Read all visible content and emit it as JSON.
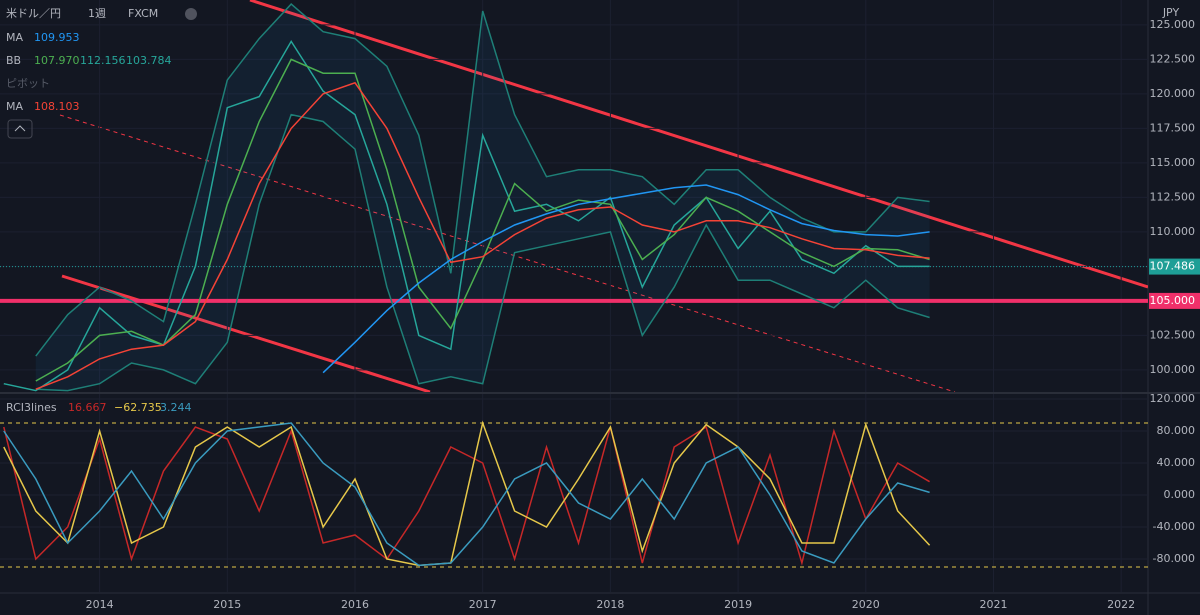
{
  "chart_data": [
    {
      "type": "line",
      "title": [
        "米ドル／円",
        "1週",
        "FXCM"
      ],
      "currency": "JPY",
      "legend": [
        {
          "label": "MA",
          "values": [
            "109.953"
          ],
          "color": "#2196f3"
        },
        {
          "label": "BB",
          "values": [
            "107.970",
            "112.156",
            "103.784"
          ],
          "color": "#4caf50"
        },
        {
          "label": "ピボット",
          "values": [],
          "color": "#555a66"
        },
        {
          "label": "MA",
          "values": [
            "108.103"
          ],
          "color": "#f44336"
        }
      ],
      "x": [
        2013.25,
        2013.5,
        2013.75,
        2014,
        2014.25,
        2014.5,
        2014.75,
        2015,
        2015.25,
        2015.5,
        2015.75,
        2016,
        2016.25,
        2016.5,
        2016.75,
        2017,
        2017.25,
        2017.5,
        2017.75,
        2018,
        2018.25,
        2018.5,
        2018.75,
        2019,
        2019.25,
        2019.5,
        2019.75,
        2020,
        2020.25,
        2020.5
      ],
      "series": [
        {
          "color": "#1e7f77",
          "values": [
            null,
            98.6,
            98.5,
            99,
            100.5,
            100,
            99,
            102,
            112,
            118.5,
            118,
            116,
            106,
            99,
            99.5,
            99,
            108.5,
            109,
            109.5,
            110,
            102.5,
            106,
            110.5,
            106.5,
            106.5,
            105.5,
            104.5,
            106.5,
            104.5,
            103.8
          ]
        },
        {
          "color": "#1e7f77",
          "values": [
            null,
            101,
            104,
            106,
            105,
            103.5,
            112,
            121,
            124,
            126.5,
            124.5,
            124,
            122,
            117,
            107,
            126,
            118.5,
            114,
            114.5,
            114.5,
            114,
            112,
            114.5,
            114.5,
            112.5,
            111,
            110,
            110,
            112.5,
            112.2
          ]
        },
        {
          "color": "#26a69a",
          "values": [
            99,
            98.5,
            100,
            104.5,
            102.5,
            101.8,
            107.5,
            119,
            119.8,
            123.8,
            120.2,
            118.5,
            112,
            102.5,
            101.5,
            117,
            111.5,
            112,
            110.8,
            112.5,
            106,
            110.5,
            112.5,
            108.8,
            111.5,
            108,
            107,
            109,
            107.5,
            107.5
          ]
        },
        {
          "color": "#4caf50",
          "values": [
            null,
            99.2,
            100.5,
            102.5,
            102.8,
            101.8,
            104,
            112,
            118,
            122.5,
            121.5,
            121.5,
            114.5,
            106,
            103,
            108,
            113.5,
            111.5,
            112.3,
            112,
            108,
            109.8,
            112.5,
            111.5,
            110,
            108.5,
            107.5,
            108.8,
            108.7,
            108
          ]
        },
        {
          "color": "#f44336",
          "values": [
            null,
            98.6,
            99.5,
            100.8,
            101.5,
            101.8,
            103.5,
            108,
            113.5,
            117.5,
            120,
            120.8,
            117.5,
            112.5,
            107.8,
            108.2,
            109.8,
            111,
            111.6,
            111.8,
            110.5,
            110,
            110.8,
            110.8,
            110.3,
            109.5,
            108.8,
            108.7,
            108.3,
            108.1
          ]
        },
        {
          "color": "#2196f3",
          "values": [
            null,
            null,
            null,
            null,
            null,
            null,
            null,
            null,
            null,
            null,
            99.8,
            102,
            104.3,
            106.3,
            108,
            109.3,
            110.5,
            111.3,
            112,
            112.4,
            112.8,
            113.2,
            113.4,
            112.7,
            111.6,
            110.6,
            110.1,
            109.8,
            109.7,
            110
          ]
        }
      ],
      "last_price": {
        "value": 107.486,
        "label": "107.486",
        "color": "#1e9e96"
      },
      "level": {
        "value": 105,
        "label": "105.000",
        "color": "#f0306a"
      },
      "xlim": [
        2013.22,
        2022.21
      ],
      "xticks": [
        2014,
        2015,
        2016,
        2017,
        2018,
        2019,
        2020,
        2021,
        2022
      ],
      "ylim": [
        98.4,
        126.8
      ],
      "yticks": [
        {
          "value": 100,
          "label": "100.000"
        },
        {
          "value": 102.5,
          "label": "102.500"
        },
        {
          "value": 105,
          "label": "105.000"
        },
        {
          "value": 107.5,
          "label": "107.500"
        },
        {
          "value": 110,
          "label": "110.000"
        },
        {
          "value": 112.5,
          "label": "112.500"
        },
        {
          "value": 115,
          "label": "115.000"
        },
        {
          "value": 117.5,
          "label": "117.500"
        },
        {
          "value": 120,
          "label": "120.000"
        },
        {
          "value": 122.5,
          "label": "122.500"
        },
        {
          "value": 125,
          "label": "125.000"
        }
      ]
    },
    {
      "type": "line",
      "legend": {
        "label": "RCI3lines",
        "values": [
          "16.667",
          "−62.735",
          "3.244"
        ]
      },
      "x": [
        2013.25,
        2013.5,
        2013.75,
        2014,
        2014.25,
        2014.5,
        2014.75,
        2015,
        2015.25,
        2015.5,
        2015.75,
        2016,
        2016.25,
        2016.5,
        2016.75,
        2017,
        2017.25,
        2017.5,
        2017.75,
        2018,
        2018.25,
        2018.5,
        2018.75,
        2019,
        2019.25,
        2019.5,
        2019.75,
        2020,
        2020.25,
        2020.5
      ],
      "series": [
        {
          "color": "#c62828",
          "values": [
            85,
            -80,
            -40,
            70,
            -80,
            30,
            85,
            70,
            -20,
            80,
            -60,
            -50,
            -80,
            -20,
            60,
            40,
            -80,
            60,
            -60,
            85,
            -85,
            60,
            85,
            -60,
            50,
            -85,
            80,
            -30,
            40,
            16.667
          ]
        },
        {
          "color": "#e6c84a",
          "values": [
            60,
            -20,
            -60,
            80,
            -60,
            -40,
            60,
            85,
            60,
            85,
            -40,
            20,
            -80,
            -88,
            -85,
            90,
            -20,
            -40,
            20,
            85,
            -70,
            40,
            88,
            60,
            20,
            -60,
            -60,
            88,
            -20,
            -62.735
          ]
        },
        {
          "color": "#3a9bbf",
          "values": [
            80,
            20,
            -60,
            -20,
            30,
            -30,
            40,
            80,
            85,
            90,
            40,
            10,
            -60,
            -88,
            -85,
            -40,
            20,
            40,
            -10,
            -30,
            20,
            -30,
            40,
            60,
            0,
            -70,
            -85,
            -30,
            15,
            3.244
          ]
        }
      ],
      "bands": [
        90,
        -90
      ],
      "xlim": [
        2013.22,
        2022.21
      ],
      "xticks": [
        2014,
        2015,
        2016,
        2017,
        2018,
        2019,
        2020,
        2021,
        2022
      ],
      "ylim": [
        -121.25,
        126.25
      ],
      "yticks": [
        {
          "value": 120,
          "label": "120.000"
        },
        {
          "value": 80,
          "label": "80.000"
        },
        {
          "value": 40,
          "label": "40.000"
        },
        {
          "value": 0,
          "label": "0.000"
        },
        {
          "value": -40,
          "label": "-40.000"
        },
        {
          "value": -80,
          "label": "-80.000"
        }
      ]
    }
  ]
}
